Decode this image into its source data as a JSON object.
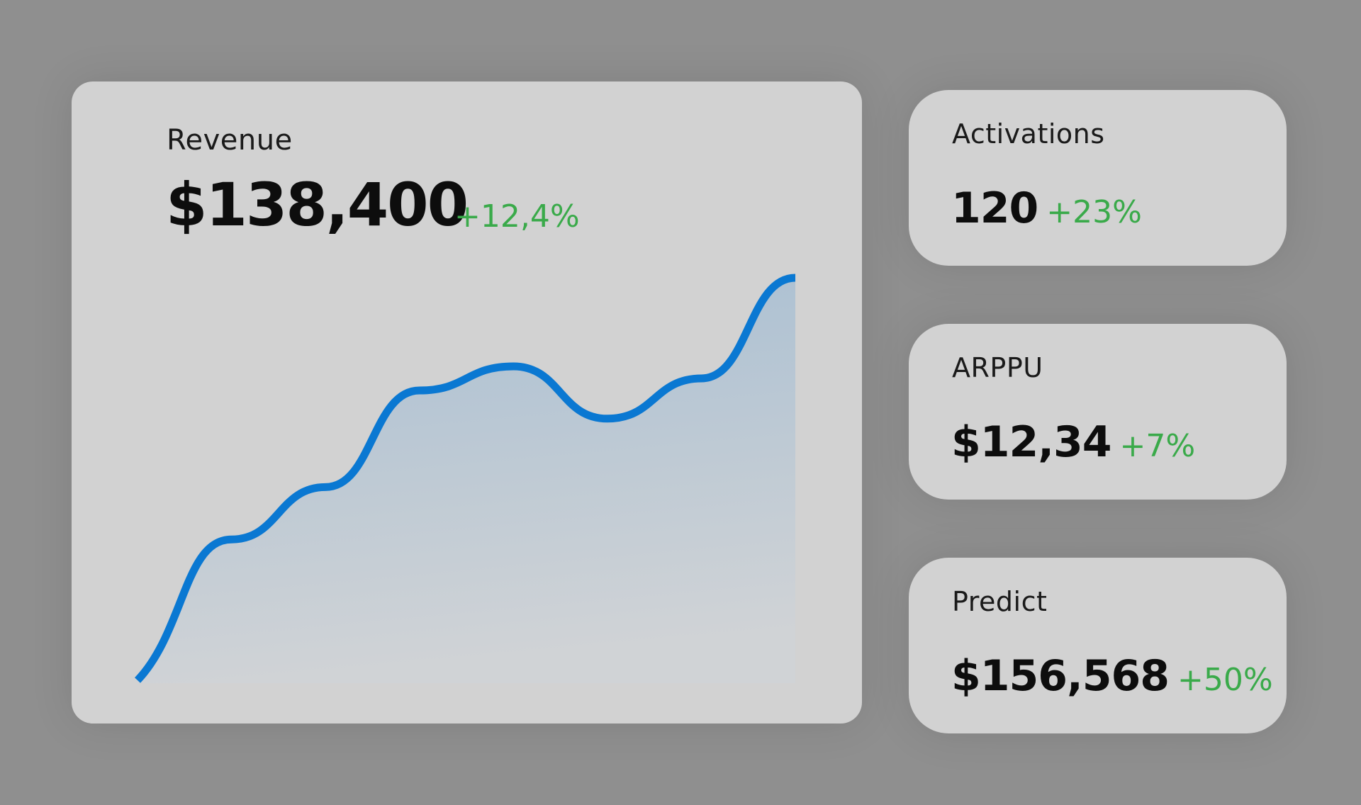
{
  "revenue": {
    "title": "Revenue",
    "value": "$138,400",
    "delta": "+12,4%"
  },
  "metrics": [
    {
      "title": "Activations",
      "value": "120",
      "delta": "+23%"
    },
    {
      "title": "ARPPU",
      "value": "$12,34",
      "delta": "+7%"
    },
    {
      "title": "Predict",
      "value": "$156,568",
      "delta": "+50%"
    }
  ],
  "chart_data": {
    "type": "area",
    "title": "Revenue",
    "xlabel": "",
    "ylabel": "",
    "grid": false,
    "legend": "none",
    "x": [
      0,
      1,
      2,
      3,
      4,
      5,
      6,
      7
    ],
    "values": [
      0,
      35,
      48,
      72,
      78,
      65,
      75,
      100
    ],
    "ylim": [
      0,
      100
    ],
    "line_color": "#0a78d2",
    "fill_top_color": "#a9bfd2",
    "fill_bottom_color": "#d0d3d6"
  },
  "colors": {
    "background": "#8f8f8f",
    "card": "#d2d2d2",
    "positive": "#3aaa4a",
    "text": "#0d0d0d"
  }
}
